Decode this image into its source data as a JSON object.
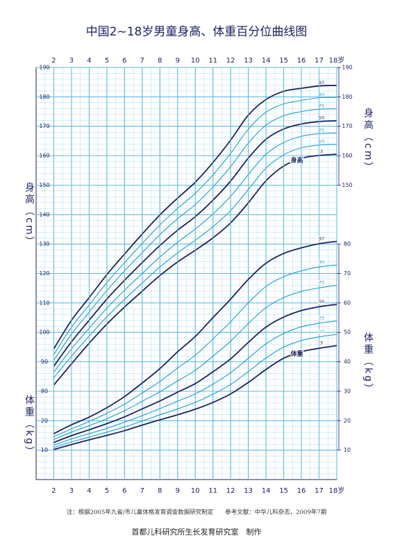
{
  "title": "中国2~18岁男童身高、体重百分位曲线图",
  "footnote": "注：根据2005年九省/市儿童体格发育调查数据研究制定　　参考文献：中华儿科杂志，2009年7期",
  "credit": "首都儿科研究所生长发育研究室　制作",
  "chart_data": [
    {
      "type": "line",
      "y_label": "身高（cm）",
      "annotation": "身高",
      "x": [
        2,
        3,
        4,
        5,
        6,
        7,
        8,
        9,
        10,
        11,
        12,
        13,
        14,
        15,
        16,
        17,
        18
      ],
      "xlim": [
        1,
        18
      ],
      "xticks": [
        2,
        3,
        4,
        5,
        6,
        7,
        8,
        9,
        10,
        11,
        12,
        13,
        14,
        15,
        16,
        17,
        {
          "value": 18,
          "label": "18岁"
        }
      ],
      "ylim": [
        50,
        190
      ],
      "yticks": [
        80,
        90,
        100,
        110,
        120,
        130,
        140,
        150,
        160,
        170,
        180,
        190
      ],
      "y2lim": [
        50,
        190
      ],
      "y2ticks": [
        150,
        160,
        170,
        180,
        190
      ],
      "grid": true,
      "series": [
        {
          "name": "3",
          "color": "#1c2260",
          "values": [
            82.1,
            89.3,
            96.3,
            102.8,
            108.6,
            114.0,
            119.3,
            123.9,
            127.9,
            132.1,
            137.2,
            144.0,
            151.5,
            156.5,
            159.1,
            160.1,
            160.5
          ]
        },
        {
          "name": "10",
          "color": "#229bd4",
          "values": [
            84.6,
            91.9,
            98.7,
            105.3,
            111.2,
            116.8,
            122.2,
            127.0,
            131.3,
            135.9,
            141.4,
            148.5,
            155.8,
            160.3,
            162.7,
            163.6,
            163.9
          ]
        },
        {
          "name": "25",
          "color": "#229bd4",
          "values": [
            86.5,
            94.4,
            101.4,
            108.2,
            114.3,
            120.0,
            125.6,
            130.6,
            135.1,
            140.2,
            146.2,
            153.6,
            160.5,
            164.5,
            166.6,
            167.5,
            167.7
          ]
        },
        {
          "name": "50",
          "color": "#1c2260",
          "values": [
            88.5,
            96.8,
            104.1,
            111.3,
            117.7,
            123.7,
            129.5,
            134.7,
            139.3,
            144.9,
            151.4,
            159.2,
            165.6,
            169.1,
            170.8,
            171.6,
            171.9
          ]
        },
        {
          "name": "75",
          "color": "#229bd4",
          "values": [
            90.5,
            99.4,
            106.9,
            114.2,
            120.9,
            127.1,
            133.2,
            138.6,
            143.4,
            149.4,
            156.3,
            164.3,
            170.4,
            173.6,
            175.0,
            175.8,
            175.9
          ]
        },
        {
          "name": "90",
          "color": "#229bd4",
          "values": [
            92.4,
            101.8,
            109.3,
            116.9,
            123.7,
            130.2,
            136.5,
            142.1,
            147.2,
            153.5,
            160.8,
            169.0,
            174.8,
            177.6,
            178.8,
            179.7,
            179.8
          ]
        },
        {
          "name": "97",
          "color": "#1c2260",
          "values": [
            94.4,
            104.1,
            111.8,
            119.6,
            126.6,
            133.4,
            139.9,
            145.6,
            151.0,
            157.7,
            165.3,
            173.8,
            179.1,
            181.9,
            182.9,
            183.7,
            183.9
          ]
        }
      ]
    },
    {
      "type": "line",
      "y_label": "体重（kg）",
      "annotation": "体重",
      "x": [
        2,
        3,
        4,
        5,
        6,
        7,
        8,
        9,
        10,
        11,
        12,
        13,
        14,
        15,
        16,
        17,
        18
      ],
      "xlim": [
        1,
        18
      ],
      "xticks": [
        2,
        3,
        4,
        5,
        6,
        7,
        8,
        9,
        10,
        11,
        12,
        13,
        14,
        15,
        16,
        17,
        {
          "value": 18,
          "label": "18岁"
        }
      ],
      "ylim": [
        0,
        140
      ],
      "yticks": [
        10,
        20
      ],
      "y2lim": [
        0,
        140
      ],
      "y2ticks": [
        10,
        20,
        30,
        40,
        50,
        60,
        70,
        80
      ],
      "grid": true,
      "series": [
        {
          "name": "3",
          "color": "#1c2260",
          "values": [
            10.2,
            11.9,
            13.5,
            15.0,
            16.6,
            18.5,
            20.3,
            22.0,
            23.9,
            26.2,
            29.1,
            33.0,
            37.4,
            41.2,
            43.4,
            44.6,
            45.5
          ]
        },
        {
          "name": "10",
          "color": "#229bd4",
          "values": [
            10.9,
            12.8,
            14.4,
            16.1,
            17.9,
            19.9,
            22.0,
            24.0,
            26.2,
            29.0,
            32.3,
            36.7,
            41.3,
            45.0,
            47.2,
            48.5,
            49.3
          ]
        },
        {
          "name": "25",
          "color": "#229bd4",
          "values": [
            11.7,
            13.8,
            15.6,
            17.4,
            19.5,
            21.7,
            24.1,
            26.6,
            29.1,
            32.4,
            36.3,
            41.2,
            46.1,
            49.6,
            51.9,
            53.1,
            53.9
          ]
        },
        {
          "name": "50",
          "color": "#1c2260",
          "values": [
            12.6,
            14.9,
            16.9,
            19.0,
            21.3,
            24.0,
            26.7,
            29.7,
            32.6,
            36.6,
            41.0,
            46.6,
            51.8,
            55.2,
            57.4,
            58.7,
            59.5
          ]
        },
        {
          "name": "75",
          "color": "#229bd4",
          "values": [
            13.6,
            16.1,
            18.3,
            20.7,
            23.4,
            26.6,
            29.8,
            33.5,
            37.1,
            41.9,
            47.0,
            53.0,
            58.4,
            61.8,
            63.9,
            65.1,
            66.0
          ]
        },
        {
          "name": "90",
          "color": "#229bd4",
          "values": [
            14.6,
            17.2,
            19.7,
            22.5,
            25.6,
            29.4,
            33.3,
            37.9,
            42.2,
            47.8,
            53.6,
            60.0,
            65.6,
            68.9,
            70.9,
            72.2,
            72.9
          ]
        },
        {
          "name": "97",
          "color": "#1c2260",
          "values": [
            15.6,
            18.6,
            21.2,
            24.4,
            28.2,
            32.8,
            37.7,
            43.4,
            48.6,
            55.0,
            61.3,
            68.0,
            73.5,
            76.8,
            78.7,
            80.1,
            80.9
          ]
        }
      ]
    }
  ]
}
